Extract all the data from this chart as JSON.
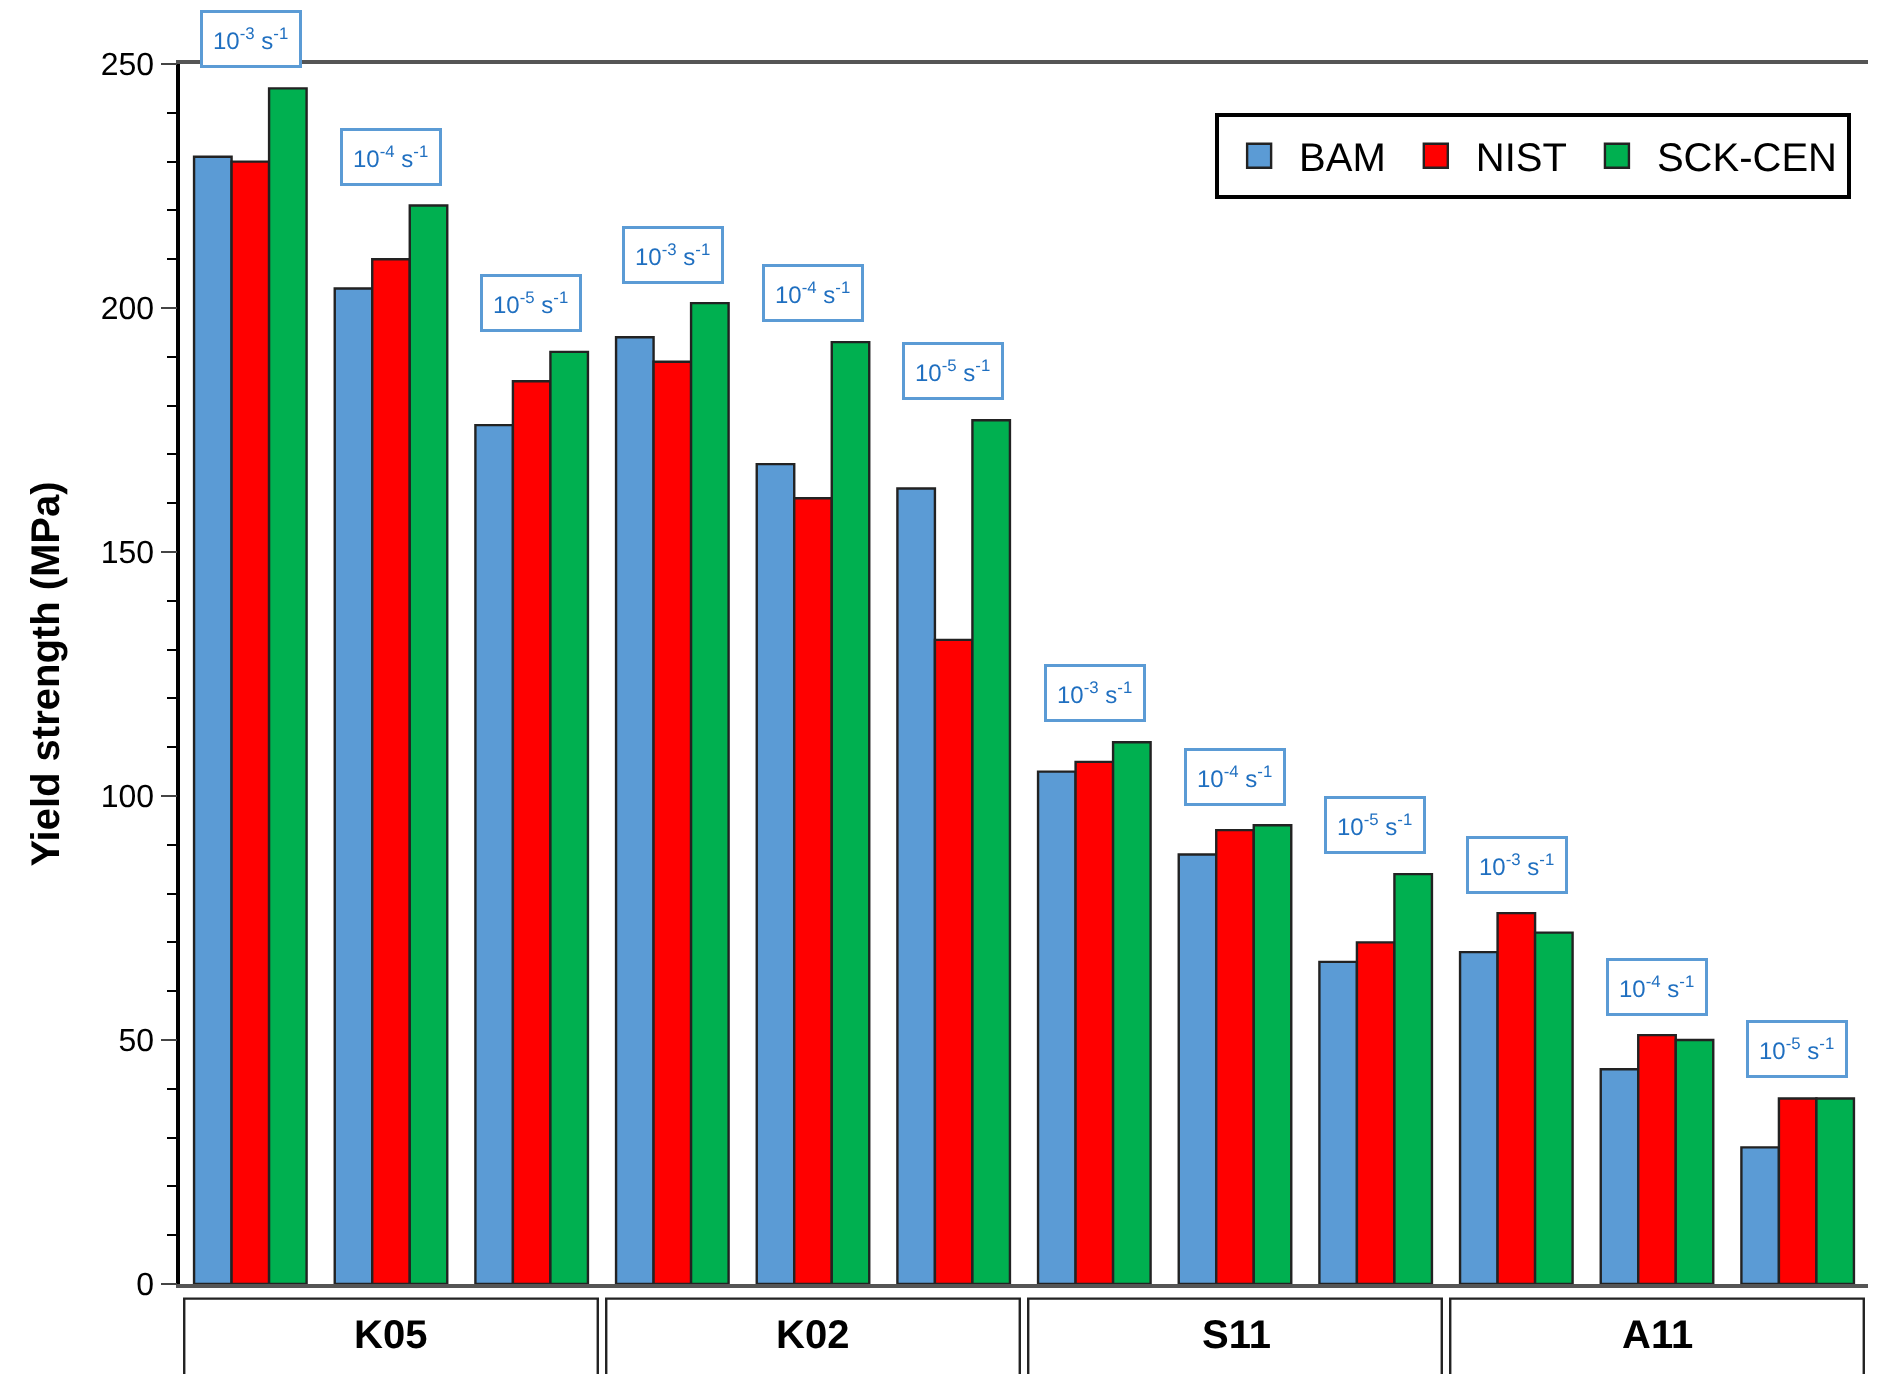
{
  "chart_data": {
    "type": "bar",
    "ylabel": "Yield strength (MPa)",
    "categories": [
      "10$^{-3}$ s$^{-1}$",
      "10$^{-4}$ s$^{-1}$",
      "10$^{-5}$ s$^{-1}$",
      "10$^{-3}$ s$^{-1}$",
      "10$^{-4}$ s$^{-1}$",
      "10$^{-5}$ s$^{-1}$",
      "10$^{-3}$ s$^{-1}$",
      "10$^{-4}$ s$^{-1}$",
      "10$^{-5}$ s$^{-1}$",
      "10$^{-3}$ s$^{-1}$",
      "10$^{-4}$ s$^{-1}$",
      "10$^{-5}$ s$^{-1}$"
    ],
    "series": [
      {
        "name": "BAM",
        "color": "#5b9bd5",
        "values": [
          231,
          204,
          176,
          194,
          168,
          163,
          105,
          88,
          66,
          68,
          44,
          28
        ]
      },
      {
        "name": "NIST",
        "color": "#ff0000",
        "values": [
          230,
          210,
          185,
          189,
          161,
          132,
          107,
          93,
          70,
          76,
          51,
          38
        ]
      },
      {
        "name": "SCK-CEN",
        "color": "#00b050",
        "values": [
          245,
          221,
          191,
          201,
          193,
          177,
          111,
          94,
          84,
          72,
          50,
          38
        ]
      }
    ],
    "annotations": [
      "K05",
      "K02",
      "S11",
      "A11"
    ],
    "ylim": [
      0,
      250
    ],
    "yticks": [
      0,
      50,
      100,
      150,
      200,
      250
    ],
    "legend": "top right"
  }
}
